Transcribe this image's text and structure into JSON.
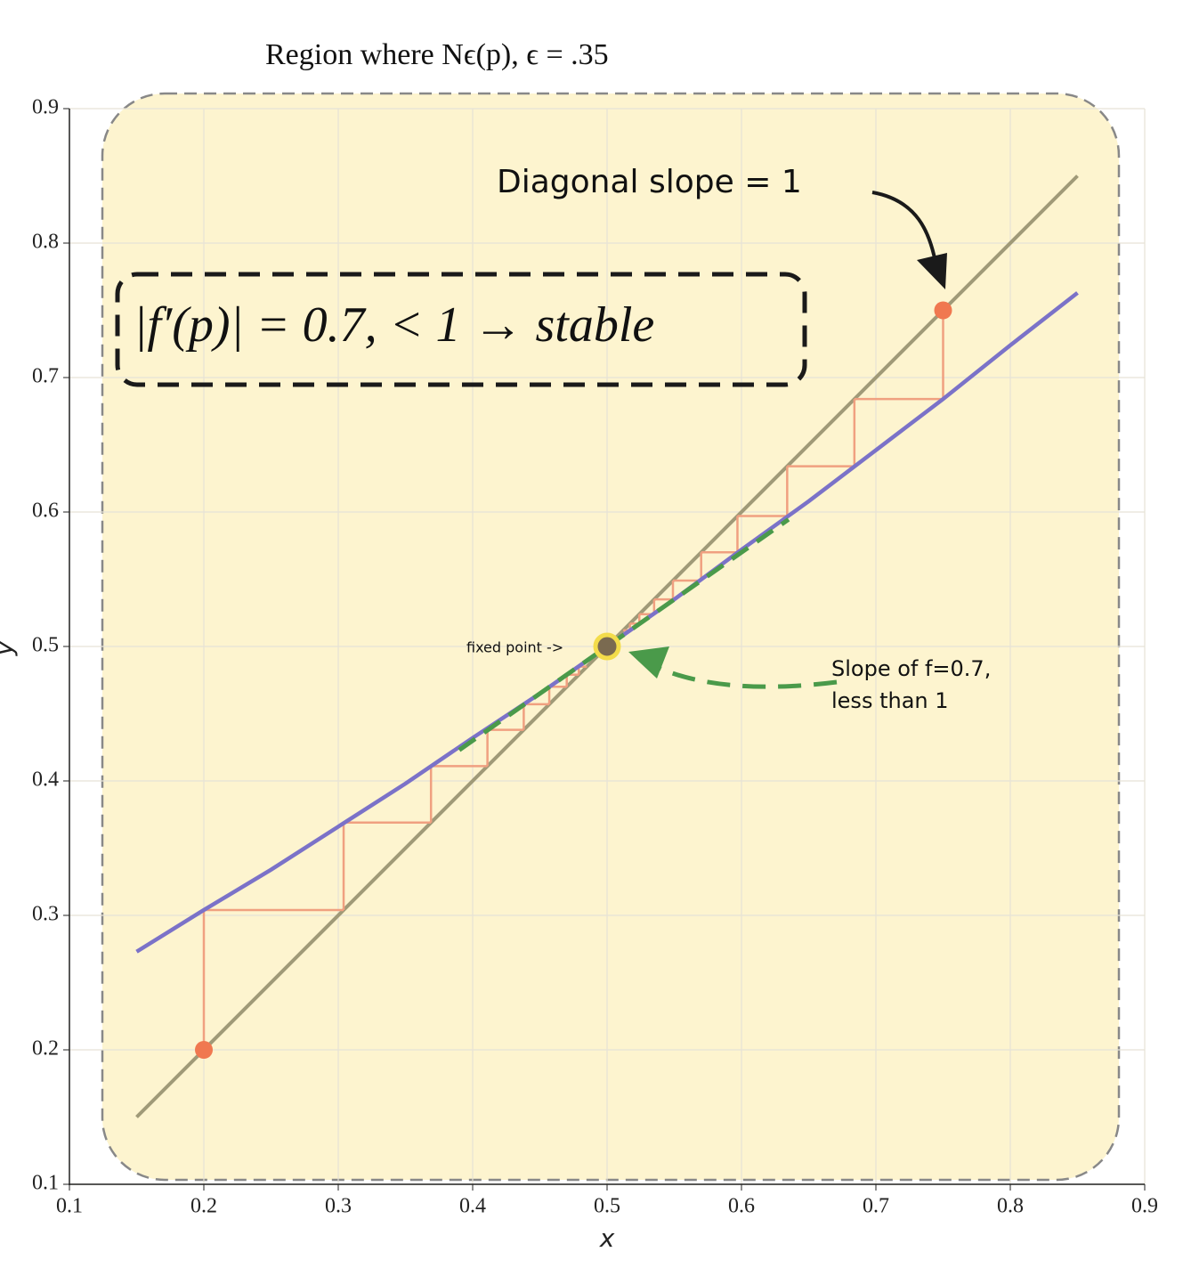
{
  "chart_data": {
    "type": "cobweb",
    "title": "Region where  Nϵ(p), ϵ = .35",
    "x_label": "x",
    "y_label": "y",
    "xlim": [
      0.1,
      0.9
    ],
    "ylim": [
      0.1,
      0.9
    ],
    "xticks": [
      0.1,
      0.2,
      0.3,
      0.4,
      0.5,
      0.6,
      0.7,
      0.8,
      0.9
    ],
    "yticks": [
      0.1,
      0.2,
      0.3,
      0.4,
      0.5,
      0.6,
      0.7,
      0.8,
      0.9
    ],
    "grid": true,
    "diagonal": {
      "color": "#a09a78",
      "x": [
        0.15,
        0.85
      ],
      "values": [
        0.15,
        0.85
      ]
    },
    "function": {
      "color": "#7b72c8",
      "x": [
        0.15,
        0.2,
        0.25,
        0.3,
        0.35,
        0.4,
        0.45,
        0.5,
        0.55,
        0.6,
        0.65,
        0.7,
        0.75,
        0.8,
        0.85
      ],
      "values": [
        0.273,
        0.304,
        0.334,
        0.366,
        0.398,
        0.432,
        0.465,
        0.5,
        0.535,
        0.572,
        0.608,
        0.646,
        0.684,
        0.724,
        0.763
      ]
    },
    "tangent": {
      "color": "#4a9a4a",
      "x": [
        0.39,
        0.635
      ],
      "values": [
        0.423,
        0.5945
      ]
    },
    "cobweb_color": "#f0a080",
    "cobwebs": [
      {
        "values": [
          0.2,
          0.304,
          0.369,
          0.411,
          0.438,
          0.457,
          0.47,
          0.479,
          0.485
        ]
      },
      {
        "values": [
          0.75,
          0.684,
          0.634,
          0.597,
          0.57,
          0.549,
          0.535,
          0.524,
          0.517,
          0.512
        ]
      }
    ],
    "start_color": "#f07850",
    "fixed_point": {
      "x": 0.5,
      "y": 0.5,
      "color": "#7a6a50"
    },
    "annotations": {
      "box": "|f′(p)| = 0.7, < 1 → stable",
      "diagonal_note": "Diagonal slope = 1",
      "fixed_note": "fixed point ->",
      "slope_note_1": "Slope of f=0.7,",
      "slope_note_2": "less than 1"
    }
  }
}
